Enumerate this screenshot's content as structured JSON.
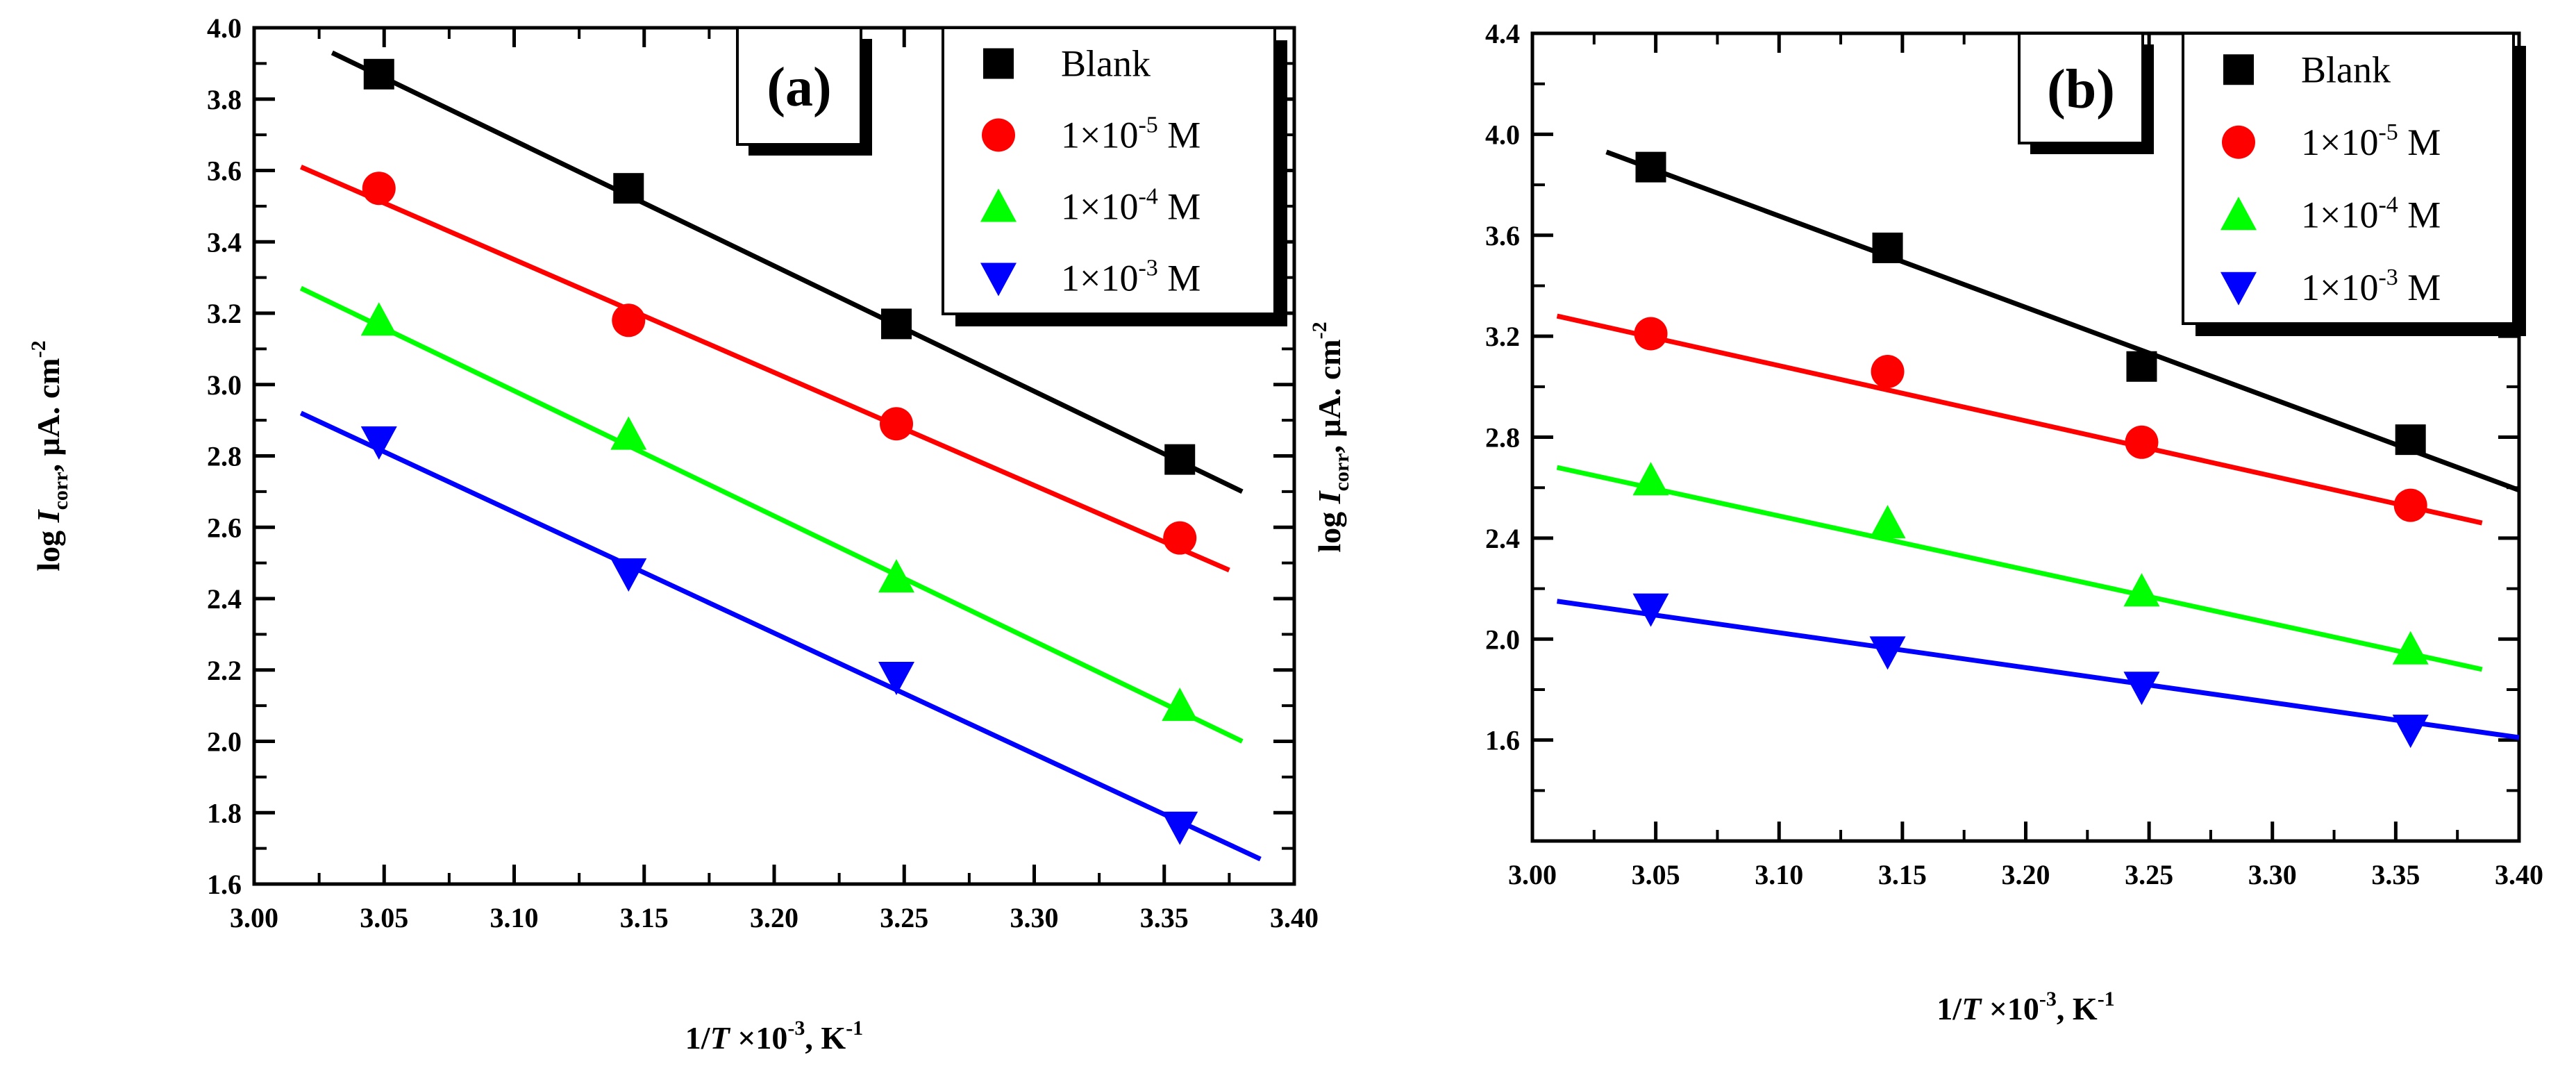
{
  "chart_data": [
    {
      "type": "scatter",
      "panel": "(a)",
      "xlabel": "1/T ×10-3, K-1",
      "ylabel": "log Icorr, μA. cm-2",
      "xlim": [
        3.0,
        3.4
      ],
      "ylim": [
        1.6,
        4.0
      ],
      "xticks": [
        "3.00",
        "3.05",
        "3.10",
        "3.15",
        "3.20",
        "3.25",
        "3.30",
        "3.35",
        "3.40"
      ],
      "yticks": [
        "1.6",
        "1.8",
        "2.0",
        "2.2",
        "2.4",
        "2.6",
        "2.8",
        "3.0",
        "3.2",
        "3.4",
        "3.6",
        "3.8",
        "4.0"
      ],
      "legend_position": "top-right",
      "series": [
        {
          "name": "Blank",
          "marker": "square",
          "color": "#000000",
          "x": [
            3.048,
            3.144,
            3.247,
            3.356
          ],
          "y": [
            3.87,
            3.55,
            3.17,
            2.79
          ],
          "fit": {
            "x": [
              3.03,
              3.38
            ],
            "y": [
              3.93,
              2.7
            ]
          }
        },
        {
          "name": "1×10-5 M",
          "marker": "circle",
          "color": "#ff0000",
          "x": [
            3.048,
            3.144,
            3.247,
            3.356
          ],
          "y": [
            3.55,
            3.18,
            2.89,
            2.57
          ],
          "fit": {
            "x": [
              3.018,
              3.375
            ],
            "y": [
              3.61,
              2.48
            ]
          }
        },
        {
          "name": "1×10-4 M",
          "marker": "triangle-up",
          "color": "#00ff00",
          "x": [
            3.048,
            3.144,
            3.247,
            3.356
          ],
          "y": [
            3.18,
            2.86,
            2.46,
            2.1
          ],
          "fit": {
            "x": [
              3.018,
              3.38
            ],
            "y": [
              3.27,
              2.0
            ]
          }
        },
        {
          "name": "1×10-3 M",
          "marker": "triangle-down",
          "color": "#0000ff",
          "x": [
            3.048,
            3.144,
            3.247,
            3.356
          ],
          "y": [
            2.84,
            2.47,
            2.18,
            1.76
          ],
          "fit": {
            "x": [
              3.018,
              3.387
            ],
            "y": [
              2.92,
              1.67
            ]
          }
        }
      ]
    },
    {
      "type": "scatter",
      "panel": "(b)",
      "xlabel": "1/T ×10-3, K-1",
      "ylabel": "log Icorr, μA. cm-2",
      "xlim": [
        3.0,
        3.4
      ],
      "ylim": [
        1.2,
        4.4
      ],
      "xticks": [
        "3.00",
        "3.05",
        "3.10",
        "3.15",
        "3.20",
        "3.25",
        "3.30",
        "3.35",
        "3.40"
      ],
      "yticks": [
        "1.6",
        "2.0",
        "2.4",
        "2.8",
        "3.2",
        "3.6",
        "4.0",
        "4.4"
      ],
      "legend_position": "top-right",
      "series": [
        {
          "name": "Blank",
          "marker": "square",
          "color": "#000000",
          "x": [
            3.048,
            3.144,
            3.247,
            3.356
          ],
          "y": [
            3.87,
            3.55,
            3.08,
            2.79
          ],
          "fit": {
            "x": [
              3.03,
              3.4
            ],
            "y": [
              3.93,
              2.59
            ]
          }
        },
        {
          "name": "1×10-5 M",
          "marker": "circle",
          "color": "#ff0000",
          "x": [
            3.048,
            3.144,
            3.247,
            3.356
          ],
          "y": [
            3.21,
            3.06,
            2.78,
            2.53
          ],
          "fit": {
            "x": [
              3.01,
              3.385
            ],
            "y": [
              3.28,
              2.46
            ]
          }
        },
        {
          "name": "1×10-4 M",
          "marker": "triangle-up",
          "color": "#00ff00",
          "x": [
            3.048,
            3.144,
            3.247,
            3.356
          ],
          "y": [
            2.63,
            2.46,
            2.19,
            1.96
          ],
          "fit": {
            "x": [
              3.01,
              3.385
            ],
            "y": [
              2.68,
              1.88
            ]
          }
        },
        {
          "name": "1×10-3 M",
          "marker": "triangle-down",
          "color": "#0000ff",
          "x": [
            3.048,
            3.144,
            3.247,
            3.356
          ],
          "y": [
            2.12,
            1.95,
            1.81,
            1.64
          ],
          "fit": {
            "x": [
              3.01,
              3.4
            ],
            "y": [
              2.15,
              1.61
            ]
          }
        }
      ]
    }
  ]
}
